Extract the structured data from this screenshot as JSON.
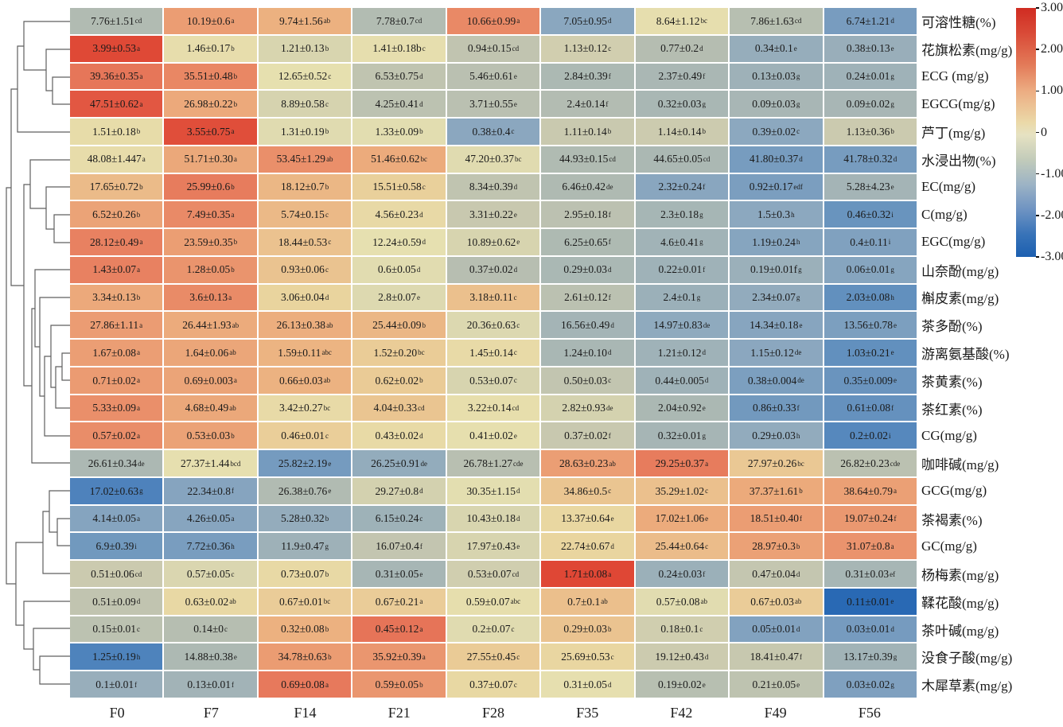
{
  "chart_data": {
    "type": "heatmap",
    "title": "",
    "x_categories": [
      "F0",
      "F7",
      "F14",
      "F21",
      "F28",
      "F35",
      "F42",
      "F49",
      "F56"
    ],
    "color_scale": {
      "meaning": "row-wise z-score",
      "range": [
        -3,
        3
      ],
      "ticks": [
        "3.00",
        "2.00",
        "1.00",
        "0",
        "-1.00",
        "-2.00",
        "-3.00"
      ],
      "high_color": "#d6281e",
      "mid_color": "#e6e0b2",
      "low_color": "#175cb0"
    },
    "rows": [
      {
        "label": "可溶性糖(%)",
        "cells": [
          [
            "7.76±1.51",
            "cd"
          ],
          [
            "10.19±0.6",
            "a"
          ],
          [
            "9.74±1.56",
            "ab"
          ],
          [
            "7.78±0.7",
            "cd"
          ],
          [
            "10.66±0.99",
            "a"
          ],
          [
            "7.05±0.95",
            "d"
          ],
          [
            "8.64±1.12",
            "bc"
          ],
          [
            "7.86±1.63",
            "cd"
          ],
          [
            "6.74±1.21",
            "d"
          ]
        ]
      },
      {
        "label": "花旗松素(mg/g)",
        "cells": [
          [
            "3.99±0.53",
            "a"
          ],
          [
            "1.46±0.17",
            "b"
          ],
          [
            "1.21±0.13",
            "b"
          ],
          [
            "1.41±0.18b",
            "c"
          ],
          [
            "0.94±0.15",
            "cd"
          ],
          [
            "1.13±0.12",
            "c"
          ],
          [
            "0.77±0.2",
            "d"
          ],
          [
            "0.34±0.1",
            "e"
          ],
          [
            "0.38±0.13",
            "e"
          ]
        ]
      },
      {
        "label": "ECG (mg/g)",
        "cells": [
          [
            "39.36±0.35",
            "a"
          ],
          [
            "35.51±0.48",
            "b"
          ],
          [
            "12.65±0.52",
            "c"
          ],
          [
            "6.53±0.75",
            "d"
          ],
          [
            "5.46±0.61",
            "e"
          ],
          [
            "2.84±0.39",
            "f"
          ],
          [
            "2.37±0.49",
            "f"
          ],
          [
            "0.13±0.03",
            "g"
          ],
          [
            "0.24±0.01",
            "g"
          ]
        ]
      },
      {
        "label": "EGCG(mg/g)",
        "cells": [
          [
            "47.51±0.62",
            "a"
          ],
          [
            "26.98±0.22",
            "b"
          ],
          [
            "8.89±0.58",
            "c"
          ],
          [
            "4.25±0.41",
            "d"
          ],
          [
            "3.71±0.55",
            "e"
          ],
          [
            "2.4±0.14",
            "f"
          ],
          [
            "0.32±0.03",
            "g"
          ],
          [
            "0.09±0.03",
            "g"
          ],
          [
            "0.09±0.02",
            "g"
          ]
        ]
      },
      {
        "label": "芦丁(mg/g)",
        "cells": [
          [
            "1.51±0.18",
            "b"
          ],
          [
            "3.55±0.75",
            "a"
          ],
          [
            "1.31±0.19",
            "b"
          ],
          [
            "1.33±0.09",
            "b"
          ],
          [
            "0.38±0.4",
            "c"
          ],
          [
            "1.11±0.14",
            "b"
          ],
          [
            "1.14±0.14",
            "b"
          ],
          [
            "0.39±0.02",
            "c"
          ],
          [
            "1.13±0.36",
            "b"
          ]
        ]
      },
      {
        "label": "水浸出物(%)",
        "cells": [
          [
            "48.08±1.447",
            "a"
          ],
          [
            "51.71±0.30",
            "a"
          ],
          [
            "53.45±1.29",
            "ab"
          ],
          [
            "51.46±0.62",
            "bc"
          ],
          [
            "47.20±0.37",
            "bc"
          ],
          [
            "44.93±0.15",
            "cd"
          ],
          [
            "44.65±0.05",
            "cd"
          ],
          [
            "41.80±0.37",
            "d"
          ],
          [
            "41.78±0.32",
            "d"
          ]
        ]
      },
      {
        "label": "EC(mg/g)",
        "cells": [
          [
            "17.65±0.72",
            "b"
          ],
          [
            "25.99±0.6",
            "b"
          ],
          [
            "18.12±0.7",
            "b"
          ],
          [
            "15.51±0.58",
            "c"
          ],
          [
            "8.34±0.39",
            "d"
          ],
          [
            "6.46±0.42",
            "de"
          ],
          [
            "2.32±0.24",
            "f"
          ],
          [
            "0.92±0.17",
            "edf"
          ],
          [
            "5.28±4.23",
            "e"
          ]
        ]
      },
      {
        "label": "C(mg/g)",
        "cells": [
          [
            "6.52±0.26",
            "b"
          ],
          [
            "7.49±0.35",
            "a"
          ],
          [
            "5.74±0.15",
            "c"
          ],
          [
            "4.56±0.23",
            "d"
          ],
          [
            "3.31±0.22",
            "e"
          ],
          [
            "2.95±0.18",
            "f"
          ],
          [
            "2.3±0.18",
            "g"
          ],
          [
            "1.5±0.3",
            "h"
          ],
          [
            "0.46±0.32",
            "i"
          ]
        ]
      },
      {
        "label": "EGC(mg/g)",
        "cells": [
          [
            "28.12±0.49",
            "a"
          ],
          [
            "23.59±0.35",
            "b"
          ],
          [
            "18.44±0.53",
            "c"
          ],
          [
            "12.24±0.59",
            "d"
          ],
          [
            "10.89±0.62",
            "e"
          ],
          [
            "6.25±0.65",
            "f"
          ],
          [
            "4.6±0.41",
            "g"
          ],
          [
            "1.19±0.24",
            "h"
          ],
          [
            "0.4±0.11",
            "i"
          ]
        ]
      },
      {
        "label": "山奈酚(mg/g)",
        "cells": [
          [
            "1.43±0.07",
            "a"
          ],
          [
            "1.28±0.05",
            "b"
          ],
          [
            "0.93±0.06",
            "c"
          ],
          [
            "0.6±0.05",
            "d"
          ],
          [
            "0.37±0.02",
            "d"
          ],
          [
            "0.29±0.03",
            "d"
          ],
          [
            "0.22±0.01",
            "f"
          ],
          [
            "0.19±0.01f",
            "g"
          ],
          [
            "0.06±0.01",
            "g"
          ]
        ]
      },
      {
        "label": "槲皮素(mg/g)",
        "cells": [
          [
            "3.34±0.13",
            "b"
          ],
          [
            "3.6±0.13",
            "a"
          ],
          [
            "3.06±0.04",
            "d"
          ],
          [
            "2.8±0.07",
            "e"
          ],
          [
            "3.18±0.11",
            "c"
          ],
          [
            "2.61±0.12",
            "f"
          ],
          [
            "2.4±0.1",
            "g"
          ],
          [
            "2.34±0.07",
            "g"
          ],
          [
            "2.03±0.08",
            "h"
          ]
        ]
      },
      {
        "label": "茶多酚(%)",
        "cells": [
          [
            "27.86±1.11",
            "a"
          ],
          [
            "26.44±1.93",
            "ab"
          ],
          [
            "26.13±0.38",
            "ab"
          ],
          [
            "25.44±0.09",
            "b"
          ],
          [
            "20.36±0.63",
            "c"
          ],
          [
            "16.56±0.49",
            "d"
          ],
          [
            "14.97±0.83",
            "de"
          ],
          [
            "14.34±0.18",
            "e"
          ],
          [
            "13.56±0.78",
            "e"
          ]
        ]
      },
      {
        "label": "游离氨基酸(%)",
        "cells": [
          [
            "1.67±0.08",
            "a"
          ],
          [
            "1.64±0.06",
            "ab"
          ],
          [
            "1.59±0.11",
            "abc"
          ],
          [
            "1.52±0.20",
            "bc"
          ],
          [
            "1.45±0.14",
            "c"
          ],
          [
            "1.24±0.10",
            "d"
          ],
          [
            "1.21±0.12",
            "d"
          ],
          [
            "1.15±0.12",
            "de"
          ],
          [
            "1.03±0.21",
            "e"
          ]
        ]
      },
      {
        "label": "茶黄素(%)",
        "cells": [
          [
            "0.71±0.02",
            "a"
          ],
          [
            "0.69±0.003",
            "a"
          ],
          [
            "0.66±0.03",
            "ab"
          ],
          [
            "0.62±0.02",
            "b"
          ],
          [
            "0.53±0.07",
            "c"
          ],
          [
            "0.50±0.03",
            "c"
          ],
          [
            "0.44±0.005",
            "d"
          ],
          [
            "0.38±0.004",
            "de"
          ],
          [
            "0.35±0.009",
            "e"
          ]
        ]
      },
      {
        "label": "茶红素(%)",
        "cells": [
          [
            "5.33±0.09",
            "a"
          ],
          [
            "4.68±0.49",
            "ab"
          ],
          [
            "3.42±0.27",
            "bc"
          ],
          [
            "4.04±0.33",
            "cd"
          ],
          [
            "3.22±0.14",
            "cd"
          ],
          [
            "2.82±0.93",
            "de"
          ],
          [
            "2.04±0.92",
            "e"
          ],
          [
            "0.86±0.33",
            "f"
          ],
          [
            "0.61±0.08",
            "f"
          ]
        ]
      },
      {
        "label": "CG(mg/g)",
        "cells": [
          [
            "0.57±0.02",
            "a"
          ],
          [
            "0.53±0.03",
            "b"
          ],
          [
            "0.46±0.01",
            "c"
          ],
          [
            "0.43±0.02",
            "d"
          ],
          [
            "0.41±0.02",
            "e"
          ],
          [
            "0.37±0.02",
            "f"
          ],
          [
            "0.32±0.01",
            "g"
          ],
          [
            "0.29±0.03",
            "h"
          ],
          [
            "0.2±0.02",
            "i"
          ]
        ]
      },
      {
        "label": "咖啡碱(mg/g)",
        "cells": [
          [
            "26.61±0.34",
            "de"
          ],
          [
            "27.37±1.44",
            "bcd"
          ],
          [
            "25.82±2.19",
            "e"
          ],
          [
            "26.25±0.91",
            "de"
          ],
          [
            "26.78±1.27",
            "cde"
          ],
          [
            "28.63±0.23",
            "ab"
          ],
          [
            "29.25±0.37",
            "a"
          ],
          [
            "27.97±0.26",
            "bc"
          ],
          [
            "26.82±0.23",
            "cde"
          ]
        ]
      },
      {
        "label": "GCG(mg/g)",
        "cells": [
          [
            "17.02±0.63",
            "g"
          ],
          [
            "22.34±0.8",
            "f"
          ],
          [
            "26.38±0.76",
            "e"
          ],
          [
            "29.27±0.8",
            "d"
          ],
          [
            "30.35±1.15",
            "d"
          ],
          [
            "34.86±0.5",
            "c"
          ],
          [
            "35.29±1.02",
            "c"
          ],
          [
            "37.37±1.61",
            "b"
          ],
          [
            "38.64±0.79",
            "a"
          ]
        ]
      },
      {
        "label": "茶褐素(%)",
        "cells": [
          [
            "4.14±0.05",
            "a"
          ],
          [
            "4.26±0.05",
            "a"
          ],
          [
            "5.28±0.32",
            "b"
          ],
          [
            "6.15±0.24",
            "c"
          ],
          [
            "10.43±0.18",
            "d"
          ],
          [
            "13.37±0.64",
            "e"
          ],
          [
            "17.02±1.06",
            "e"
          ],
          [
            "18.51±0.40",
            "f"
          ],
          [
            "19.07±0.24",
            "f"
          ]
        ]
      },
      {
        "label": "GC(mg/g)",
        "cells": [
          [
            "6.9±0.39",
            "i"
          ],
          [
            "7.72±0.36",
            "h"
          ],
          [
            "11.9±0.47",
            "g"
          ],
          [
            "16.07±0.4",
            "f"
          ],
          [
            "17.97±0.43",
            "e"
          ],
          [
            "22.74±0.67",
            "d"
          ],
          [
            "25.44±0.64",
            "c"
          ],
          [
            "28.97±0.3",
            "b"
          ],
          [
            "31.07±0.8",
            "a"
          ]
        ]
      },
      {
        "label": "杨梅素(mg/g)",
        "cells": [
          [
            "0.51±0.06",
            "cd"
          ],
          [
            "0.57±0.05",
            "c"
          ],
          [
            "0.73±0.07",
            "b"
          ],
          [
            "0.31±0.05",
            "e"
          ],
          [
            "0.53±0.07",
            "cd"
          ],
          [
            "1.71±0.08",
            "a"
          ],
          [
            "0.24±0.03",
            "f"
          ],
          [
            "0.47±0.04",
            "d"
          ],
          [
            "0.31±0.03",
            "ef"
          ]
        ]
      },
      {
        "label": "鞣花酸(mg/g)",
        "cells": [
          [
            "0.51±0.09",
            "d"
          ],
          [
            "0.63±0.02",
            "ab"
          ],
          [
            "0.67±0.01",
            "bc"
          ],
          [
            "0.67±0.21",
            "a"
          ],
          [
            "0.59±0.07",
            "abc"
          ],
          [
            "0.7±0.1",
            "ab"
          ],
          [
            "0.57±0.08",
            "ab"
          ],
          [
            "0.67±0.03",
            "ab"
          ],
          [
            "0.11±0.01",
            "e"
          ]
        ]
      },
      {
        "label": "茶叶碱(mg/g)",
        "cells": [
          [
            "0.15±0.01",
            "c"
          ],
          [
            "0.14±0",
            "c"
          ],
          [
            "0.32±0.08",
            "b"
          ],
          [
            "0.45±0.12",
            "a"
          ],
          [
            "0.2±0.07",
            "c"
          ],
          [
            "0.29±0.03",
            "b"
          ],
          [
            "0.18±0.1",
            "c"
          ],
          [
            "0.05±0.01",
            "d"
          ],
          [
            "0.03±0.01",
            "d"
          ]
        ]
      },
      {
        "label": "没食子酸(mg/g)",
        "cells": [
          [
            "1.25±0.19",
            "h"
          ],
          [
            "14.88±0.38",
            "e"
          ],
          [
            "34.78±0.63",
            "b"
          ],
          [
            "35.92±0.39",
            "a"
          ],
          [
            "27.55±0.45",
            "c"
          ],
          [
            "25.69±0.53",
            "c"
          ],
          [
            "19.12±0.43",
            "d"
          ],
          [
            "18.41±0.47",
            "f"
          ],
          [
            "13.17±0.39",
            "g"
          ]
        ]
      },
      {
        "label": "木犀草素(mg/g)",
        "cells": [
          [
            "0.1±0.01",
            "f"
          ],
          [
            "0.13±0.01",
            "f"
          ],
          [
            "0.69±0.08",
            "a"
          ],
          [
            "0.59±0.05",
            "b"
          ],
          [
            "0.37±0.07",
            "c"
          ],
          [
            "0.31±0.05",
            "d"
          ],
          [
            "0.19±0.02",
            "e"
          ],
          [
            "0.21±0.05",
            "e"
          ],
          [
            "0.03±0.02",
            "g"
          ]
        ]
      }
    ]
  }
}
